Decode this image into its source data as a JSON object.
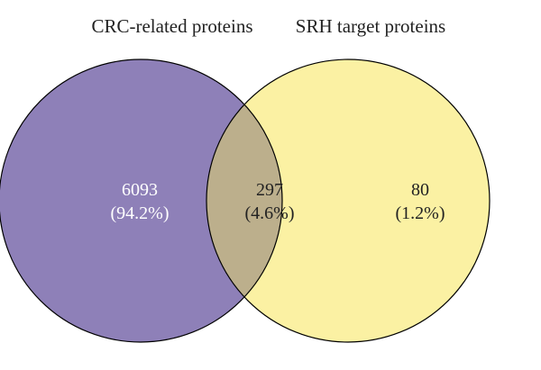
{
  "sets": [
    {
      "key": "A",
      "label": "CRC-related proteins",
      "color": "#8e80b8"
    },
    {
      "key": "B",
      "label": "SRH target proteins",
      "color": "#fbf1a3"
    }
  ],
  "intersection_color": "#bcaf8c",
  "outline_color": "#000000",
  "regions": [
    {
      "key": "A_only",
      "count": "6093",
      "percent": "(94.2%)",
      "text_color": "#ffffff"
    },
    {
      "key": "A_and_B",
      "count": "297",
      "percent": "(4.6%)",
      "text_color": "#222222"
    },
    {
      "key": "B_only",
      "count": "80",
      "percent": "(1.2%)",
      "text_color": "#222222"
    }
  ]
}
